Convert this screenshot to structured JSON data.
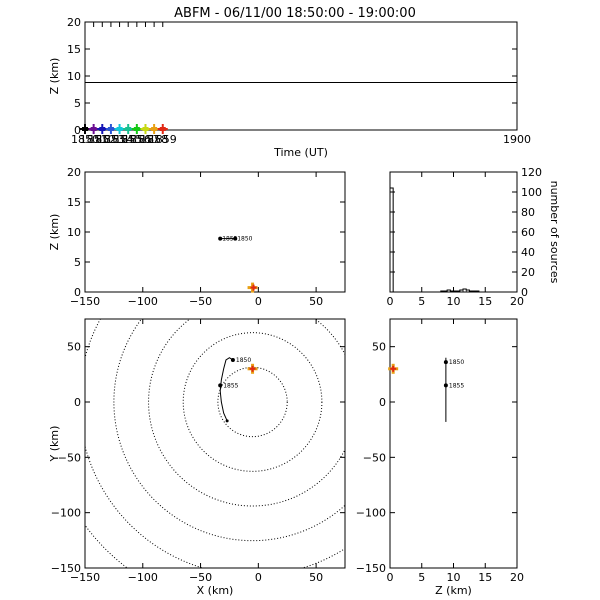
{
  "title": "ABFM - 06/11/00 18:50:00 - 19:00:00",
  "chart_data": [
    {
      "id": "time_height",
      "type": "scatter",
      "xlabel": "Time (UT)",
      "ylabel": "Z (km)",
      "xlim": [
        1850,
        1900
      ],
      "ylim": [
        0,
        20
      ],
      "xticks": [
        1850,
        1851,
        1852,
        1853,
        1854,
        1855,
        1856,
        1857,
        1858,
        1859,
        1900
      ],
      "xtick_labels": [
        "1850",
        "1851",
        "1852",
        "1853",
        "1854",
        "1855",
        "1856",
        "1857",
        "1858",
        "1859",
        "1900"
      ],
      "yticks": [
        0,
        5,
        10,
        15,
        20
      ],
      "line": {
        "y": 8.8,
        "x_from": 1850,
        "x_to": 1900
      },
      "markers": [
        {
          "x": 1850,
          "y": 0,
          "color": "#000000"
        },
        {
          "x": 1851,
          "y": 0,
          "color": "#6a0d91"
        },
        {
          "x": 1852,
          "y": 0,
          "color": "#1414b4"
        },
        {
          "x": 1853,
          "y": 0,
          "color": "#2a56d6"
        },
        {
          "x": 1854,
          "y": 0,
          "color": "#12c8d8"
        },
        {
          "x": 1855,
          "y": 0,
          "color": "#18c090"
        },
        {
          "x": 1856,
          "y": 0,
          "color": "#14c814"
        },
        {
          "x": 1857,
          "y": 0,
          "color": "#c8d814"
        },
        {
          "x": 1858,
          "y": 0,
          "color": "#e8a014"
        },
        {
          "x": 1859,
          "y": 0,
          "color": "#e02814"
        }
      ]
    },
    {
      "id": "x_height",
      "type": "scatter",
      "xlabel": "",
      "ylabel": "Z (km)",
      "xlim": [
        -150,
        75
      ],
      "ylim": [
        0,
        20
      ],
      "xticks": [
        -150,
        -100,
        -50,
        0,
        50
      ],
      "yticks": [
        0,
        5,
        10,
        15,
        20
      ],
      "track": [
        {
          "x": -33,
          "y": 8.9
        },
        {
          "x": -20,
          "y": 8.9
        }
      ],
      "points": [
        {
          "x": -33,
          "y": 8.9,
          "label": "1855"
        },
        {
          "x": -20,
          "y": 8.9,
          "label": "1850"
        }
      ],
      "station": {
        "x": -5,
        "y": 0.4
      }
    },
    {
      "id": "altitude_histogram",
      "type": "bar",
      "xlabel": "",
      "ylabel": "number of sources",
      "xlim": [
        0,
        20
      ],
      "ylim": [
        0,
        120
      ],
      "xticks": [
        0,
        5,
        10,
        15,
        20
      ],
      "yticks": [
        0,
        20,
        40,
        60,
        80,
        100,
        120
      ],
      "bin_edges": [
        0,
        0.5,
        1,
        1.5,
        2,
        2.5,
        3,
        3.5,
        4,
        4.5,
        5,
        5.5,
        6,
        6.5,
        7,
        7.5,
        8,
        8.5,
        9,
        9.5,
        10,
        10.5,
        11,
        11.5,
        12,
        12.5,
        13,
        13.5,
        14,
        14.5,
        15,
        15.5,
        16,
        16.5,
        17,
        17.5,
        18,
        18.5,
        19,
        19.5,
        20
      ],
      "counts": [
        104,
        0,
        0,
        0,
        0,
        0,
        0,
        0,
        0,
        0,
        0,
        0,
        0,
        0,
        0,
        0,
        1,
        1,
        2,
        1,
        1,
        1,
        2,
        3,
        2,
        1,
        1,
        1,
        0,
        0,
        0,
        0,
        0,
        0,
        0,
        0,
        0,
        0,
        0,
        0
      ]
    },
    {
      "id": "plan_view",
      "type": "scatter",
      "xlabel": "X (km)",
      "ylabel": "Y (km)",
      "xlim": [
        -150,
        75
      ],
      "ylim": [
        -150,
        75
      ],
      "xticks": [
        -150,
        -100,
        -50,
        0,
        50
      ],
      "yticks": [
        -150,
        -100,
        -50,
        0,
        50
      ],
      "range_rings_km": [
        30,
        60,
        90,
        120,
        150,
        180
      ],
      "ring_center": {
        "x": -5,
        "y": 0
      },
      "track": [
        {
          "x": -22,
          "y": 38
        },
        {
          "x": -25,
          "y": 40
        },
        {
          "x": -28,
          "y": 38
        },
        {
          "x": -30,
          "y": 30
        },
        {
          "x": -32,
          "y": 20
        },
        {
          "x": -33,
          "y": 10
        },
        {
          "x": -32,
          "y": 0
        },
        {
          "x": -30,
          "y": -10
        },
        {
          "x": -27,
          "y": -17
        }
      ],
      "points": [
        {
          "x": -22,
          "y": 38,
          "label": "1850"
        },
        {
          "x": -33,
          "y": 15,
          "label": "1855"
        }
      ],
      "station": {
        "x": -5,
        "y": 30
      }
    },
    {
      "id": "height_y",
      "type": "scatter",
      "xlabel": "Z (km)",
      "ylabel": "",
      "xlim": [
        0,
        20
      ],
      "ylim": [
        -150,
        75
      ],
      "xticks": [
        0,
        5,
        10,
        15,
        20
      ],
      "yticks": [
        -150,
        -100,
        -50,
        0,
        50
      ],
      "track": [
        {
          "x": 8.8,
          "y": 40
        },
        {
          "x": 8.8,
          "y": -18
        }
      ],
      "points": [
        {
          "x": 8.8,
          "y": 36,
          "label": "1850"
        },
        {
          "x": 8.8,
          "y": 15,
          "label": "1855"
        }
      ],
      "station": {
        "x": 0.5,
        "y": 30
      }
    }
  ]
}
